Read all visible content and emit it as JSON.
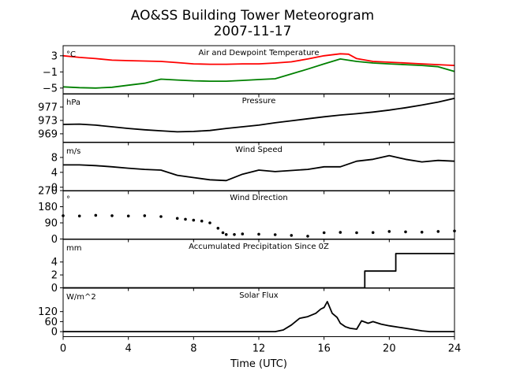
{
  "title": "AO&SS Building Tower Meteorogram",
  "subtitle": "2007-11-17",
  "xlabel": "Time (UTC)",
  "x_ticks": [
    0,
    4,
    8,
    12,
    16,
    20,
    24
  ],
  "chart_data": [
    {
      "type": "line",
      "title": "Air and Dewpoint Temperature",
      "unit": "°C",
      "xlim": [
        0,
        24
      ],
      "ylim": [
        -6.5,
        5.5
      ],
      "yticks": [
        3,
        -1,
        -5
      ],
      "ytick_labels": [
        "3",
        "−1",
        "−5"
      ],
      "series": [
        {
          "color": "#ff0000",
          "x": [
            0,
            1,
            2,
            3,
            4,
            5,
            6,
            7,
            8,
            9,
            10,
            11,
            12,
            13,
            14,
            15,
            16,
            17,
            17.5,
            18,
            19,
            20,
            21,
            22,
            23,
            24
          ],
          "y": [
            3.0,
            2.6,
            2.3,
            1.9,
            1.8,
            1.7,
            1.6,
            1.3,
            1.0,
            0.9,
            0.9,
            1.0,
            1.0,
            1.2,
            1.5,
            2.2,
            3.0,
            3.5,
            3.4,
            2.3,
            1.6,
            1.4,
            1.2,
            1.0,
            0.8,
            0.6
          ]
        },
        {
          "color": "#008000",
          "x": [
            0,
            1,
            2,
            3,
            4,
            5,
            6,
            7,
            8,
            9,
            10,
            11,
            12,
            13,
            14,
            15,
            16,
            17,
            18,
            19,
            20,
            21,
            22,
            23,
            24
          ],
          "y": [
            -4.7,
            -4.9,
            -5.0,
            -4.8,
            -4.3,
            -3.8,
            -2.8,
            -3.0,
            -3.2,
            -3.3,
            -3.3,
            -3.1,
            -2.9,
            -2.7,
            -1.5,
            -0.3,
            1.0,
            2.2,
            1.6,
            1.2,
            1.0,
            0.8,
            0.6,
            0.3,
            -0.9
          ]
        }
      ]
    },
    {
      "type": "line",
      "title": "Pressure",
      "unit": "hPa",
      "xlim": [
        0,
        24
      ],
      "ylim": [
        966.5,
        981
      ],
      "yticks": [
        977,
        973,
        969
      ],
      "ytick_labels": [
        "977",
        "973",
        "969"
      ],
      "series": [
        {
          "color": "#000000",
          "x": [
            0,
            1,
            2,
            3,
            4,
            5,
            6,
            7,
            8,
            9,
            10,
            11,
            12,
            13,
            14,
            15,
            16,
            17,
            18,
            19,
            20,
            21,
            22,
            23,
            24
          ],
          "y": [
            971.8,
            971.9,
            971.6,
            971.1,
            970.6,
            970.2,
            969.9,
            969.6,
            969.7,
            970.0,
            970.6,
            971.1,
            971.6,
            972.3,
            972.9,
            973.5,
            974.1,
            974.6,
            975.0,
            975.5,
            976.1,
            976.8,
            977.6,
            978.5,
            979.6
          ]
        }
      ]
    },
    {
      "type": "line",
      "title": "Wind Speed",
      "unit": "m/s",
      "xlim": [
        0,
        24
      ],
      "ylim": [
        -1,
        12
      ],
      "yticks": [
        8,
        4,
        0
      ],
      "ytick_labels": [
        "8",
        "4",
        "0"
      ],
      "series": [
        {
          "color": "#000000",
          "x": [
            0,
            1,
            2,
            3,
            4,
            5,
            6,
            7,
            8,
            9,
            10,
            11,
            12,
            13,
            14,
            15,
            16,
            17,
            18,
            19,
            20,
            21,
            22,
            23,
            24
          ],
          "y": [
            6.0,
            6.0,
            5.8,
            5.5,
            5.1,
            4.8,
            4.6,
            3.2,
            2.6,
            2.0,
            1.8,
            3.5,
            4.6,
            4.2,
            4.5,
            4.8,
            5.5,
            5.5,
            7.0,
            7.5,
            8.5,
            7.5,
            6.8,
            7.2,
            7.0
          ]
        }
      ]
    },
    {
      "type": "scatter",
      "title": "Wind Direction",
      "unit": "°",
      "xlim": [
        0,
        24
      ],
      "ylim": [
        0,
        270
      ],
      "yticks": [
        270,
        180,
        90,
        0
      ],
      "ytick_labels": [
        "270",
        "180",
        "90",
        "0"
      ],
      "series": [
        {
          "color": "#000000",
          "x": [
            0,
            1,
            2,
            3,
            4,
            5,
            6,
            7,
            7.5,
            8,
            8.5,
            9,
            9.5,
            9.8,
            10,
            10.5,
            11,
            12,
            13,
            14,
            15,
            16,
            17,
            18,
            19,
            20,
            21,
            22,
            23,
            24
          ],
          "y": [
            130,
            128,
            132,
            130,
            128,
            130,
            125,
            115,
            110,
            105,
            100,
            90,
            60,
            35,
            25,
            25,
            28,
            27,
            24,
            20,
            16,
            35,
            37,
            35,
            36,
            42,
            40,
            38,
            42,
            45
          ]
        }
      ]
    },
    {
      "type": "line",
      "title": "Accumulated Precipitation Since 0Z",
      "unit": "mm",
      "xlim": [
        0,
        24
      ],
      "ylim": [
        0,
        7.5
      ],
      "yticks": [
        4,
        2,
        0
      ],
      "ytick_labels": [
        "4",
        "2",
        "0"
      ],
      "series": [
        {
          "color": "#000000",
          "x": [
            0,
            18.5,
            18.5,
            20.4,
            20.4,
            24
          ],
          "y": [
            0,
            0,
            2.6,
            2.6,
            5.3,
            5.3
          ]
        }
      ]
    },
    {
      "type": "line",
      "title": "Solar Flux",
      "unit": "W/m^2",
      "xlim": [
        0,
        24
      ],
      "ylim": [
        -30,
        260
      ],
      "yticks": [
        120,
        60,
        0
      ],
      "ytick_labels": [
        "120",
        "60",
        "0"
      ],
      "series": [
        {
          "color": "#000000",
          "x": [
            0,
            13,
            13.5,
            14,
            14.5,
            15,
            15.5,
            15.8,
            16,
            16.2,
            16.5,
            16.8,
            17,
            17.3,
            17.6,
            18,
            18.3,
            18.7,
            19,
            19.5,
            20,
            21,
            22,
            22.5,
            23,
            24
          ],
          "y": [
            0,
            0,
            10,
            40,
            80,
            90,
            110,
            135,
            145,
            180,
            110,
            85,
            50,
            30,
            20,
            15,
            65,
            50,
            60,
            45,
            35,
            20,
            5,
            0,
            0,
            0
          ]
        }
      ]
    }
  ]
}
